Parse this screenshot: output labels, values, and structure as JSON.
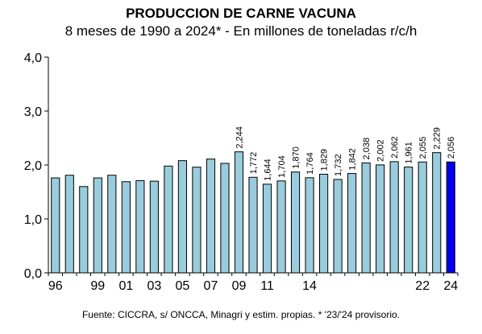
{
  "chart_data": {
    "type": "bar",
    "title": "PRODUCCION DE CARNE VACUNA",
    "subtitle": "8 meses de 1990 a 2024* - En millones de toneladas r/c/h",
    "source": "Fuente: CICCRA, s/ ONCCA, Minagri y estim. propias. * '23/'24 provisorio.",
    "xlabel": "",
    "ylabel": "",
    "ylim": [
      0,
      4
    ],
    "yticks": [
      "0,0",
      "1,0",
      "2,0",
      "3,0",
      "4,0"
    ],
    "ytick_values": [
      0,
      1,
      2,
      3,
      4
    ],
    "grid": false,
    "categories": [
      "1996",
      "1997",
      "1998",
      "1999",
      "2000",
      "2001",
      "2002",
      "2003",
      "2004",
      "2005",
      "2006",
      "2007",
      "2008",
      "2009",
      "2010",
      "2011",
      "2012",
      "2013",
      "2014",
      "2015",
      "2016",
      "2017",
      "2018",
      "2019",
      "2020",
      "2021",
      "2022",
      "2023",
      "2024"
    ],
    "xtick_labels": [
      "96",
      "",
      "",
      "99",
      "",
      "01",
      "",
      "03",
      "",
      "05",
      "",
      "07",
      "",
      "09",
      "",
      "11",
      "",
      "",
      "14",
      "",
      "",
      "",
      "",
      "",
      "",
      "",
      "22",
      "",
      "24"
    ],
    "values": [
      1.76,
      1.81,
      1.6,
      1.76,
      1.81,
      1.69,
      1.71,
      1.7,
      1.98,
      2.08,
      1.96,
      2.11,
      2.03,
      2.244,
      1.772,
      1.644,
      1.704,
      1.87,
      1.764,
      1.829,
      1.732,
      1.842,
      2.038,
      2.002,
      2.062,
      1.961,
      2.055,
      2.229,
      2.056
    ],
    "data_labels": [
      "",
      "",
      "",
      "",
      "",
      "",
      "",
      "",
      "",
      "",
      "",
      "",
      "",
      "2,244",
      "1,772",
      "1,644",
      "1,704",
      "1,870",
      "1,764",
      "1,829",
      "1,732",
      "1,842",
      "2,038",
      "2,002",
      "2,062",
      "1,961",
      "2,055",
      "2,229",
      "2,056"
    ],
    "colors": {
      "bar": "#99ccdd",
      "highlight": "#0000ee",
      "outline": "#000000"
    },
    "highlight_index": 28
  }
}
